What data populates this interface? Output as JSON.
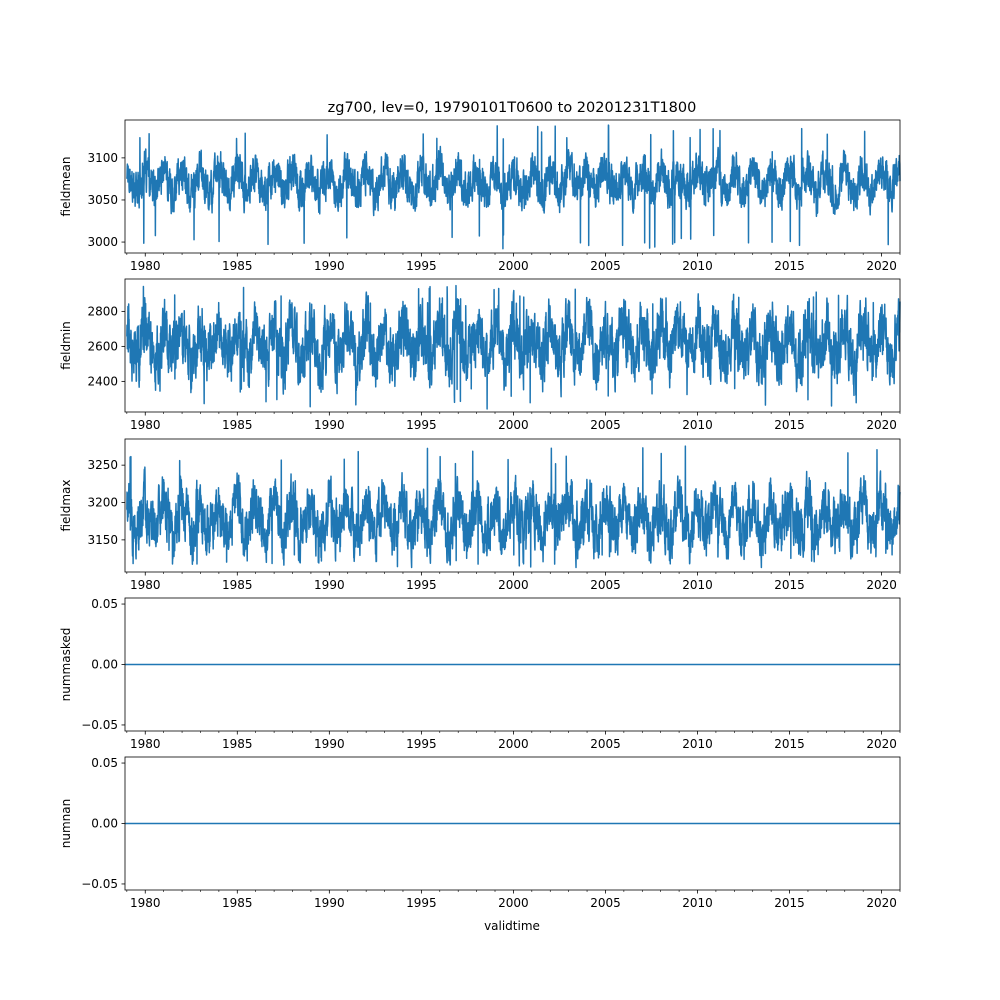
{
  "figure": {
    "title": "zg700, lev=0, 19790101T0600 to 20201231T1800",
    "xlabel": "validtime"
  },
  "chart_data": [
    {
      "type": "line",
      "ylabel": "fieldmean",
      "x_range": [
        "1979-01-01T06:00",
        "2020-12-31T18:00"
      ],
      "xlim": [
        1978.9,
        2021.0
      ],
      "ylim": [
        2987,
        3145
      ],
      "yticks": [
        3000,
        3050,
        3100
      ],
      "xticks": [
        1980,
        1985,
        1990,
        1995,
        2000,
        2005,
        2010,
        2015,
        2020
      ],
      "series": [
        {
          "color": "#1f77b4",
          "approx_mean": 3072,
          "approx_min": 2992,
          "approx_max": 3139,
          "typical_low": 3045,
          "typical_high": 3100
        }
      ],
      "grid": false
    },
    {
      "type": "line",
      "ylabel": "fieldmin",
      "x_range": [
        "1979-01-01T06:00",
        "2020-12-31T18:00"
      ],
      "xlim": [
        1978.9,
        2021.0
      ],
      "ylim": [
        2225,
        2985
      ],
      "yticks": [
        2400,
        2600,
        2800
      ],
      "xticks": [
        1980,
        1985,
        1990,
        1995,
        2000,
        2005,
        2010,
        2015,
        2020
      ],
      "series": [
        {
          "color": "#1f77b4",
          "approx_mean": 2615,
          "approx_min": 2240,
          "approx_max": 2950,
          "typical_low": 2420,
          "typical_high": 2820
        }
      ],
      "grid": false
    },
    {
      "type": "line",
      "ylabel": "fieldmax",
      "x_range": [
        "1979-01-01T06:00",
        "2020-12-31T18:00"
      ],
      "xlim": [
        1978.9,
        2021.0
      ],
      "ylim": [
        3107,
        3285
      ],
      "yticks": [
        3150,
        3200,
        3250
      ],
      "xticks": [
        1980,
        1985,
        1990,
        1995,
        2000,
        2005,
        2010,
        2015,
        2020
      ],
      "series": [
        {
          "color": "#1f77b4",
          "approx_mean": 3178,
          "approx_min": 3113,
          "approx_max": 3276,
          "typical_low": 3140,
          "typical_high": 3225
        }
      ],
      "grid": false
    },
    {
      "type": "line",
      "ylabel": "nummasked",
      "x_range": [
        "1979-01-01T06:00",
        "2020-12-31T18:00"
      ],
      "xlim": [
        1978.9,
        2021.0
      ],
      "ylim": [
        -0.055,
        0.055
      ],
      "yticks": [
        -0.05,
        0.0,
        0.05
      ],
      "ytick_labels": [
        "−0.05",
        "0.00",
        "0.05"
      ],
      "xticks": [
        1980,
        1985,
        1990,
        1995,
        2000,
        2005,
        2010,
        2015,
        2020
      ],
      "series": [
        {
          "color": "#1f77b4",
          "constant": 0.0
        }
      ],
      "grid": false
    },
    {
      "type": "line",
      "ylabel": "numnan",
      "x_range": [
        "1979-01-01T06:00",
        "2020-12-31T18:00"
      ],
      "xlim": [
        1978.9,
        2021.0
      ],
      "ylim": [
        -0.055,
        0.055
      ],
      "yticks": [
        -0.05,
        0.0,
        0.05
      ],
      "ytick_labels": [
        "−0.05",
        "0.00",
        "0.05"
      ],
      "xticks": [
        1980,
        1985,
        1990,
        1995,
        2000,
        2005,
        2010,
        2015,
        2020
      ],
      "series": [
        {
          "color": "#1f77b4",
          "constant": 0.0
        }
      ],
      "grid": false
    }
  ]
}
